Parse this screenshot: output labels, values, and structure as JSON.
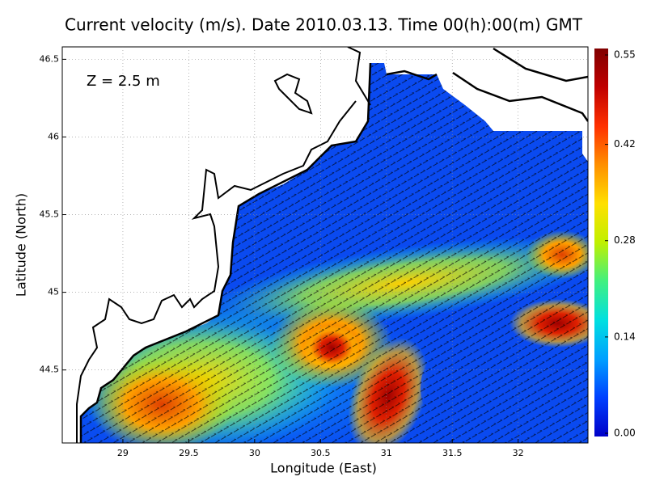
{
  "chart_data": {
    "type": "map",
    "title": "Current velocity (m/s). Date 2010.03.13. Time 00(h):00(m) GMT",
    "annotation": "Z = 2.5 m",
    "x_label": "Longitude (East)",
    "y_label": "Latitude (North)",
    "xlim": [
      28.54,
      32.53
    ],
    "ylim": [
      44.03,
      46.58
    ],
    "xticks": [
      29,
      29.5,
      30,
      30.5,
      31,
      31.5,
      32
    ],
    "yticks": [
      44.5,
      45,
      45.5,
      46,
      46.5
    ],
    "grid": true,
    "colorbar": {
      "clim": [
        0,
        0.55
      ],
      "ticks": [
        {
          "value": 0,
          "label": "0.00"
        },
        0.14,
        0.28,
        0.42,
        0.55
      ],
      "colormap": [
        "#0000c8",
        "#0040ff",
        "#00a0ff",
        "#00e0e0",
        "#40f080",
        "#c0f000",
        "#ffe000",
        "#ff9000",
        "#ff3000",
        "#c00000",
        "#800000"
      ]
    }
  }
}
